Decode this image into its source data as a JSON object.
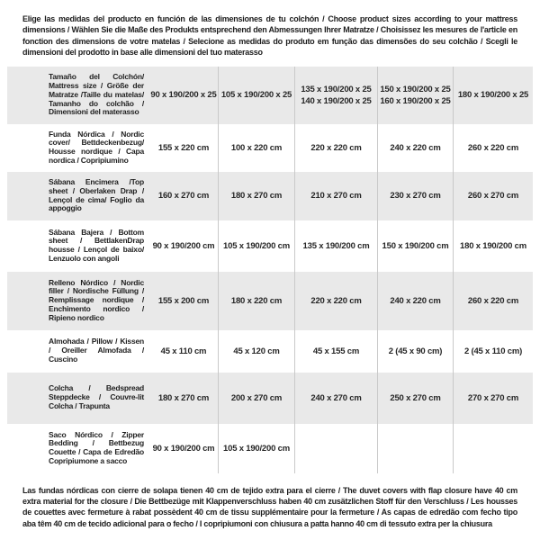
{
  "colors": {
    "row_stripe": "#e9e9e9",
    "divider": "#c9c9c9",
    "text": "#1f1f1f",
    "background": "#ffffff"
  },
  "intro": {
    "text": "Elige las medidas del producto en función de las dimensiones de tu colchón / Choose product sizes according to your mattress dimensions / Wählen Sie die Maße des Produkts entsprechend den Abmessungen Ihrer Matratze / Choisissez les mesures de l'article en fonction des dimensions de votre matelas / Selecione as medidas do produto em função das dimensões do seu colchão / Scegli le dimensioni del prodotto in base alle dimensioni del tuo materasso"
  },
  "table": {
    "rows": [
      {
        "label": "Tamaño del Colchón/ Mattress size / Größe der Matratze /Taille du matelas/ Tamanho do colchão / Dimensioni del materasso",
        "values": [
          "90 x 190/200 x 25",
          "105 x 190/200 x 25",
          "135 x 190/200 x 25\n140 x 190/200 x 25",
          "150 x 190/200 x 25\n160 x 190/200 x 25",
          "180 x 190/200 x 25"
        ]
      },
      {
        "label": "Funda Nórdica / Nordic cover/ Bettdeckenbezug/ Housse nordique / Capa nordica / Copripiumino",
        "values": [
          "155 x 220 cm",
          "100 x 220 cm",
          "220 x 220 cm",
          "240 x 220 cm",
          "260 x 220 cm"
        ]
      },
      {
        "label": "Sábana Encimera /Top sheet / Oberlaken Drap / Lençol de cima/ Foglio da appoggio",
        "values": [
          "160 x 270 cm",
          "180 x 270 cm",
          "210 x 270 cm",
          "230 x 270 cm",
          "260 x 270 cm"
        ]
      },
      {
        "label": "Sábana Bajera / Bottom sheet / BettlakenDrap housse / Lençol de baixo/ Lenzuolo con angoli",
        "values": [
          "90 x 190/200 cm",
          "105 x 190/200 cm",
          "135 x 190/200 cm",
          "150 x 190/200 cm",
          "180 x 190/200 cm"
        ]
      },
      {
        "label": "Relleno Nórdico / Nordic filler / Nordische Füllung / Remplissage nordique / Enchimento nordico / Ripieno nordico",
        "values": [
          "155 x 200 cm",
          "180 x 220 cm",
          "220 x 220 cm",
          "240 x 220 cm",
          "260 x 220 cm"
        ]
      },
      {
        "label": "Almohada / Pillow / Kissen / Oreiller Almofada / Cuscino",
        "values": [
          "45 x 110 cm",
          "45 x 120 cm",
          "45 x 155 cm",
          "2 (45 x 90 cm)",
          "2 (45 x 110 cm)"
        ]
      },
      {
        "label": "Colcha / Bedspread Steppdecke / Couvre-lit Colcha / Trapunta",
        "values": [
          "180 x 270 cm",
          "200 x 270 cm",
          "240 x 270 cm",
          "250 x 270 cm",
          "270 x 270 cm"
        ]
      },
      {
        "label": "Saco Nórdico / Zipper Bedding / Bettbezug Couette / Capa de Edredão Copripiumone a sacco",
        "values": [
          "90 x 190/200 cm",
          "105 x 190/200 cm",
          "",
          "",
          ""
        ]
      }
    ]
  },
  "footnote": {
    "text": "Las fundas nórdicas con cierre de solapa tienen 40 cm de tejido extra para el cierre  / The duvet covers with flap closure have 40 cm extra material for the closure / Die Bettbezüge mit Klappenverschluss haben 40 cm zusätzlichen Stoff für den Verschluss / Les housses de couettes avec fermeture à rabat possèdent 40 cm de tissu supplémentaire pour la fermeture / As capas de edredão com fecho tipo aba têm 40 cm de tecido adicional para o fecho / I copripiumoni con chiusura a patta hanno 40 cm di tessuto extra per la chiusura"
  }
}
